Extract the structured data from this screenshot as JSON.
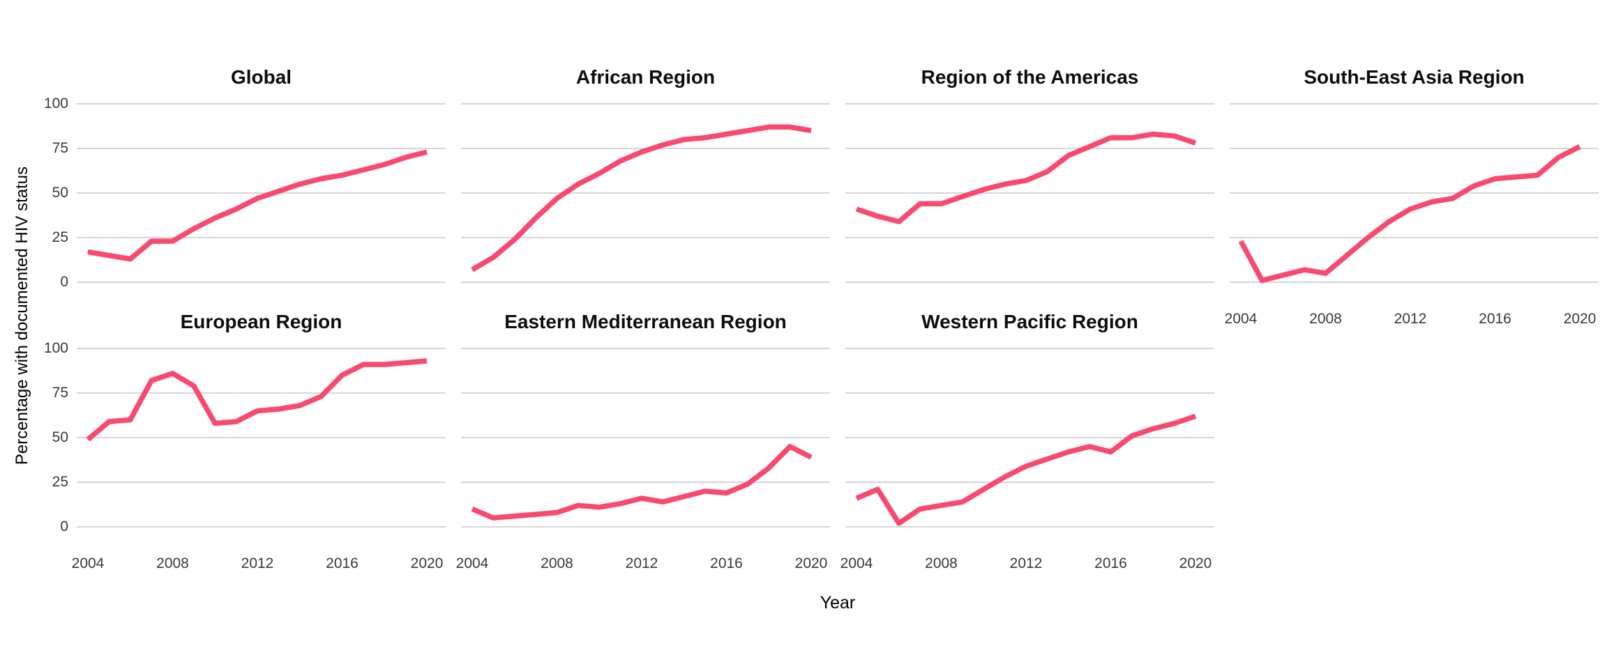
{
  "figure": {
    "x_axis_title": "Year",
    "y_axis_title": "Percentage with documented HIV status",
    "line_color": "#F84A6F",
    "gridline_color": "#D5D5D5",
    "background_color": "#FFFFFF"
  },
  "chart_data": {
    "type": "line",
    "title": "",
    "xlabel": "Year",
    "ylabel": "Percentage with documented HIV status",
    "grid": "horizontal-major-only",
    "legend_position": "none",
    "ylim": [
      0,
      100
    ],
    "xlim": [
      2004,
      2020
    ],
    "x": [
      2004,
      2005,
      2006,
      2007,
      2008,
      2009,
      2010,
      2011,
      2012,
      2013,
      2014,
      2015,
      2016,
      2017,
      2018,
      2019,
      2020
    ],
    "x_ticks": [
      2004,
      2008,
      2012,
      2016,
      2020
    ],
    "y_ticks": [
      100,
      75,
      50,
      25,
      0
    ],
    "facets": [
      {
        "title": "Global",
        "values": [
          17,
          15,
          13,
          23,
          23,
          30,
          36,
          41,
          47,
          51,
          55,
          58,
          60,
          63,
          66,
          70,
          73
        ]
      },
      {
        "title": "African Region",
        "values": [
          7,
          14,
          24,
          36,
          47,
          55,
          61,
          68,
          73,
          77,
          80,
          81,
          83,
          85,
          87,
          87,
          85
        ]
      },
      {
        "title": "Region of the Americas",
        "values": [
          41,
          37,
          34,
          44,
          44,
          48,
          52,
          55,
          57,
          62,
          71,
          76,
          81,
          81,
          83,
          82,
          78
        ]
      },
      {
        "title": "South-East Asia Region",
        "values": [
          23,
          1,
          4,
          7,
          5,
          15,
          25,
          34,
          41,
          45,
          47,
          54,
          58,
          59,
          60,
          70,
          76
        ]
      },
      {
        "title": "European Region",
        "values": [
          49,
          59,
          60,
          82,
          86,
          79,
          58,
          59,
          65,
          66,
          68,
          73,
          85,
          91,
          91,
          92,
          93
        ]
      },
      {
        "title": "Eastern Mediterranean Region",
        "values": [
          10,
          5,
          6,
          7,
          8,
          12,
          11,
          13,
          16,
          14,
          17,
          20,
          19,
          24,
          33,
          45,
          39
        ]
      },
      {
        "title": "Western Pacific Region",
        "values": [
          16,
          21,
          2,
          10,
          12,
          14,
          21,
          28,
          34,
          38,
          42,
          45,
          42,
          51,
          55,
          58,
          62
        ]
      }
    ]
  }
}
